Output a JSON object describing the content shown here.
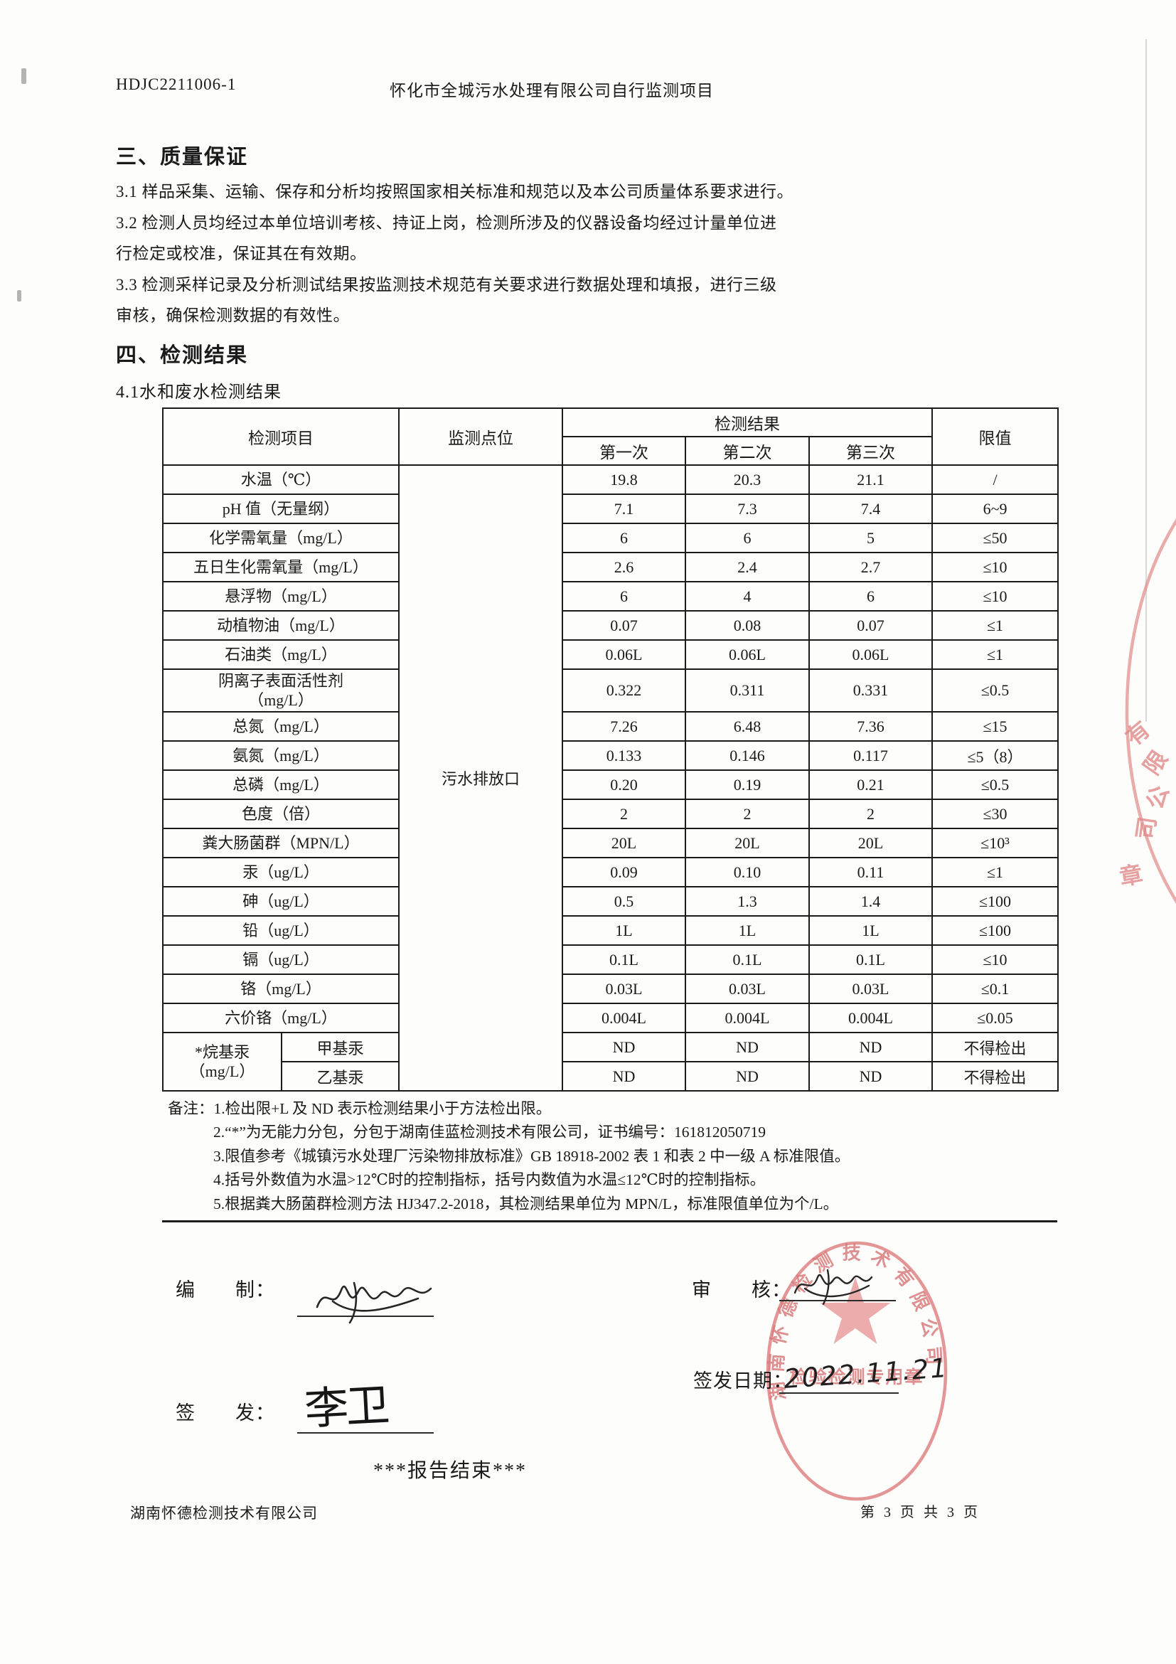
{
  "header": {
    "report_no": "HDJC2211006-1",
    "project": "怀化市全城污水处理有限公司自行监测项目"
  },
  "section_quality": {
    "title": "三、质量保证",
    "lines": "3.1 样品采集、运输、保存和分析均按照国家相关标准和规范以及本公司质量体系要求进行。\n3.2 检测人员均经过本单位培训考核、持证上岗，检测所涉及的仪器设备均经过计量单位进\n行检定或校准，保证其在有效期。\n3.3 检测采样记录及分析测试结果按监测技术规范有关要求进行数据处理和填报，进行三级\n审核，确保检测数据的有效性。"
  },
  "section_results": {
    "title": "四、检测结果",
    "subtitle": "4.1水和废水检测结果"
  },
  "table": {
    "headers": {
      "item": "检测项目",
      "location": "监测点位",
      "result_group": "检测结果",
      "run1": "第一次",
      "run2": "第二次",
      "run3": "第三次",
      "limit": "限值"
    },
    "location_value": "污水排放口",
    "rows": [
      {
        "item": "水温（℃）",
        "v1": "19.8",
        "v2": "20.3",
        "v3": "21.1",
        "limit": "/"
      },
      {
        "item": "pH 值（无量纲）",
        "v1": "7.1",
        "v2": "7.3",
        "v3": "7.4",
        "limit": "6~9"
      },
      {
        "item": "化学需氧量（mg/L）",
        "v1": "6",
        "v2": "6",
        "v3": "5",
        "limit": "≤50"
      },
      {
        "item": "五日生化需氧量（mg/L）",
        "v1": "2.6",
        "v2": "2.4",
        "v3": "2.7",
        "limit": "≤10"
      },
      {
        "item": "悬浮物（mg/L）",
        "v1": "6",
        "v2": "4",
        "v3": "6",
        "limit": "≤10"
      },
      {
        "item": "动植物油（mg/L）",
        "v1": "0.07",
        "v2": "0.08",
        "v3": "0.07",
        "limit": "≤1"
      },
      {
        "item": "石油类（mg/L）",
        "v1": "0.06L",
        "v2": "0.06L",
        "v3": "0.06L",
        "limit": "≤1"
      },
      {
        "item": "阴离子表面活性剂\n（mg/L）",
        "v1": "0.322",
        "v2": "0.311",
        "v3": "0.331",
        "limit": "≤0.5"
      },
      {
        "item": "总氮（mg/L）",
        "v1": "7.26",
        "v2": "6.48",
        "v3": "7.36",
        "limit": "≤15"
      },
      {
        "item": "氨氮（mg/L）",
        "v1": "0.133",
        "v2": "0.146",
        "v3": "0.117",
        "limit": "≤5（8）"
      },
      {
        "item": "总磷（mg/L）",
        "v1": "0.20",
        "v2": "0.19",
        "v3": "0.21",
        "limit": "≤0.5"
      },
      {
        "item": "色度（倍）",
        "v1": "2",
        "v2": "2",
        "v3": "2",
        "limit": "≤30"
      },
      {
        "item": "粪大肠菌群（MPN/L）",
        "v1": "20L",
        "v2": "20L",
        "v3": "20L",
        "limit": "≤10³"
      },
      {
        "item": "汞（ug/L）",
        "v1": "0.09",
        "v2": "0.10",
        "v3": "0.11",
        "limit": "≤1"
      },
      {
        "item": "砷（ug/L）",
        "v1": "0.5",
        "v2": "1.3",
        "v3": "1.4",
        "limit": "≤100"
      },
      {
        "item": "铅（ug/L）",
        "v1": "1L",
        "v2": "1L",
        "v3": "1L",
        "limit": "≤100"
      },
      {
        "item": "镉（ug/L）",
        "v1": "0.1L",
        "v2": "0.1L",
        "v3": "0.1L",
        "limit": "≤10"
      },
      {
        "item": "铬（mg/L）",
        "v1": "0.03L",
        "v2": "0.03L",
        "v3": "0.03L",
        "limit": "≤0.1"
      },
      {
        "item": "六价铬（mg/L）",
        "v1": "0.004L",
        "v2": "0.004L",
        "v3": "0.004L",
        "limit": "≤0.05"
      }
    ],
    "alkyl": {
      "label": "*烷基汞\n（mg/L）",
      "rows": [
        {
          "name": "甲基汞",
          "v1": "ND",
          "v2": "ND",
          "v3": "ND",
          "limit": "不得检出"
        },
        {
          "name": "乙基汞",
          "v1": "ND",
          "v2": "ND",
          "v3": "ND",
          "limit": "不得检出"
        }
      ]
    }
  },
  "notes": {
    "n1": "备注：1.检出限+L 及 ND 表示检测结果小于方法检出限。",
    "n2": "2.“*”为无能力分包，分包于湖南佳蓝检测技术有限公司，证书编号：161812050719",
    "n3": "3.限值参考《城镇污水处理厂污染物排放标准》GB 18918-2002 表 1 和表 2 中一级 A 标准限值。",
    "n4": "4.括号外数值为水温>12℃时的控制指标，括号内数值为水温≤12℃时的控制指标。",
    "n5": "5.根据粪大肠菌群检测方法 HJ347.2-2018，其检测结果单位为 MPN/L，标准限值单位为个/L。"
  },
  "signatures": {
    "prepared_label": "编　　制：",
    "reviewed_label": "审　　核：",
    "issued_label": "签　　发：",
    "issue_date_label": "签发日期：",
    "issued_signature": "李卫",
    "issue_date_value": "2022.11.21"
  },
  "report_end": "***报告结束***",
  "footer": {
    "company": "湖南怀德检测技术有限公司",
    "page": "第 3 页 共 3 页"
  },
  "stamps": {
    "main_arc_text": "湖南怀德检测技术有限公司",
    "main_center_text": "检验检测专用章",
    "edge_chars": [
      "有",
      "限",
      "公",
      "司",
      "章"
    ],
    "stamp_color": "#d97c7c",
    "star_color": "#eba3a3"
  }
}
